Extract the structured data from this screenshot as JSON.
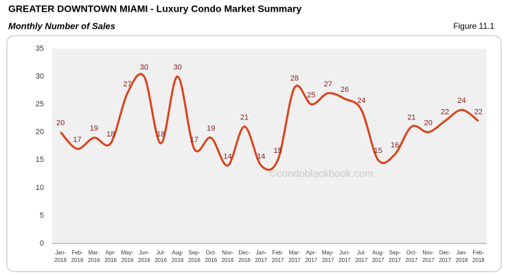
{
  "chart_data": {
    "type": "line",
    "title": "GREATER DOWNTOWN MIAMI - Luxury Condo Market Summary",
    "subtitle": "Monthly Number of Sales",
    "figure_label": "Figure 11.1",
    "watermark": "©condoblackbook.com",
    "categories": [
      "Jan-2016",
      "Feb-2016",
      "Mar-2016",
      "Apr-2016",
      "May-2016",
      "Jun-2016",
      "Jul-2016",
      "Aug-2016",
      "Sep-2016",
      "Oct-2016",
      "Nov-2016",
      "Dec-2016",
      "Jan-2017",
      "Feb-2017",
      "Mar-2017",
      "Apr-2017",
      "May-2017",
      "Jun-2017",
      "Jul-2017",
      "Aug-2017",
      "Sep-2017",
      "Oct-2017",
      "Nov-2017",
      "Dec-2017",
      "Jan-2018",
      "Feb-2018"
    ],
    "values": [
      20,
      17,
      19,
      18,
      27,
      30,
      18,
      30,
      17,
      19,
      14,
      21,
      14,
      15,
      28,
      25,
      27,
      26,
      24,
      15,
      16,
      21,
      20,
      22,
      24,
      22
    ],
    "color": "#d9441c",
    "label_color": "#8b1a1a",
    "ylim": [
      0,
      35
    ],
    "yticks": [
      0,
      5,
      10,
      15,
      20,
      25,
      30,
      35
    ],
    "grid": false
  }
}
